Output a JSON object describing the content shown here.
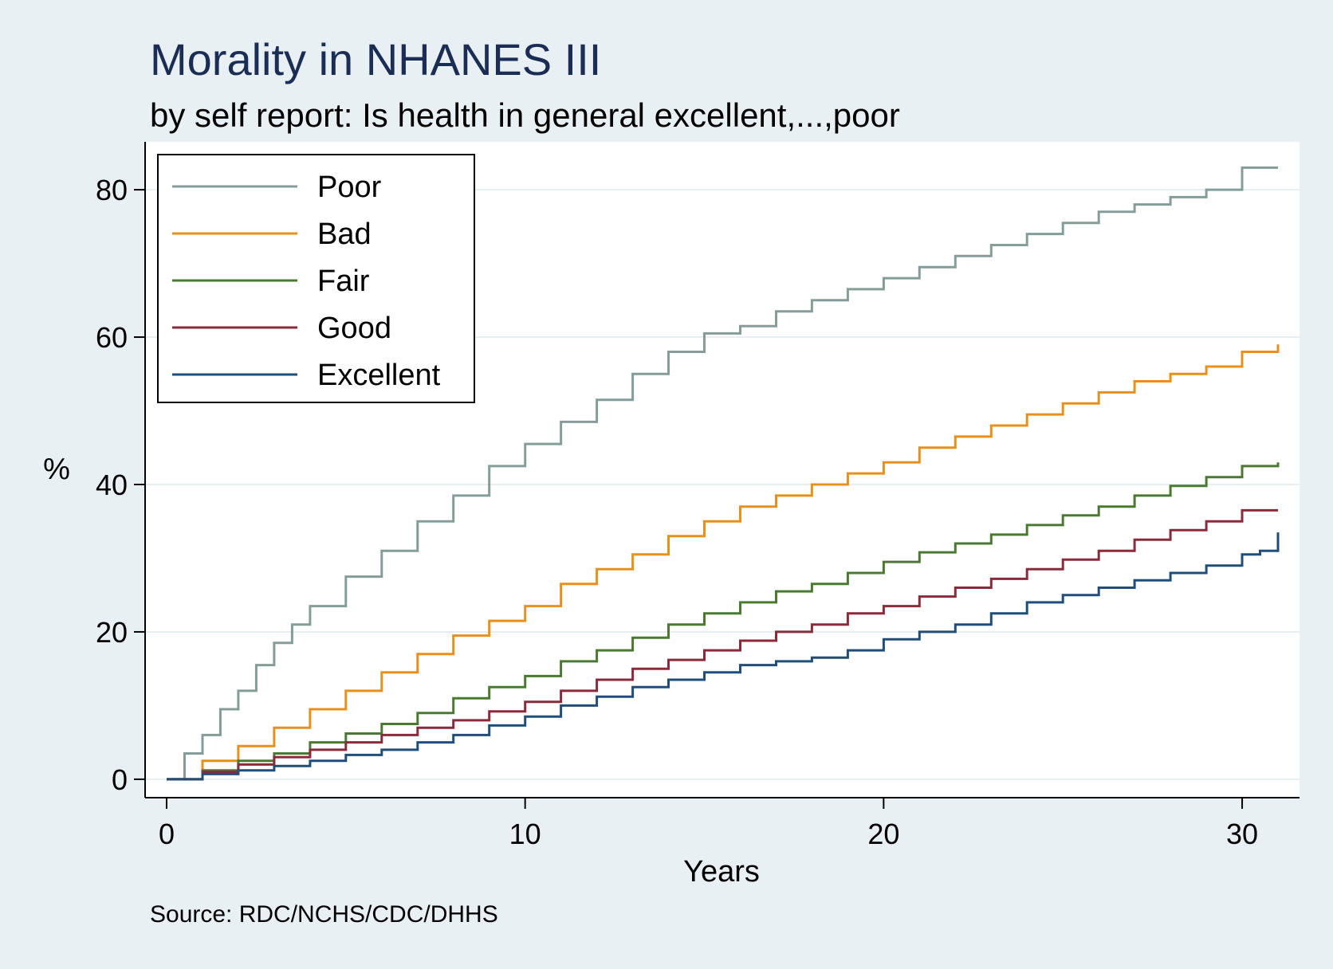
{
  "chart_data": {
    "type": "line",
    "title": "Morality in NHANES III",
    "subtitle": "by self report: Is health in general excellent,...,poor",
    "xlabel": "Years",
    "ylabel": "%",
    "note": "Source: RDC/NCHS/CDC/DHHS",
    "xlim": [
      -0.6,
      31.6
    ],
    "ylim": [
      -2.5,
      86.5
    ],
    "xticks": [
      0,
      10,
      20,
      30
    ],
    "yticks": [
      0,
      20,
      40,
      60,
      80
    ],
    "grid": "horizontal",
    "legend_position": "top-left",
    "series": [
      {
        "name": "Poor",
        "color": "#849d99",
        "x": [
          0,
          0.5,
          1,
          1.5,
          2,
          2.5,
          3,
          3.5,
          4,
          5,
          6,
          7,
          8,
          9,
          10,
          11,
          12,
          13,
          14,
          15,
          16,
          17,
          18,
          19,
          20,
          21,
          22,
          23,
          24,
          25,
          26,
          27,
          28,
          29,
          30,
          31
        ],
        "y": [
          0,
          3.5,
          6,
          9.5,
          12,
          15.5,
          18.5,
          21,
          23.5,
          27.5,
          31,
          35,
          38.5,
          42.5,
          45.5,
          48.5,
          51.5,
          55,
          58,
          60.5,
          61.5,
          63.5,
          65,
          66.5,
          68,
          69.5,
          71,
          72.5,
          74,
          75.5,
          77,
          78,
          79,
          80,
          83,
          83
        ]
      },
      {
        "name": "Bad",
        "color": "#e8901c",
        "x": [
          0,
          1,
          2,
          3,
          4,
          5,
          6,
          7,
          8,
          9,
          10,
          11,
          12,
          13,
          14,
          15,
          16,
          17,
          18,
          19,
          20,
          21,
          22,
          23,
          24,
          25,
          26,
          27,
          28,
          29,
          30,
          31
        ],
        "y": [
          0,
          2.5,
          4.5,
          7,
          9.5,
          12,
          14.5,
          17,
          19.5,
          21.5,
          23.5,
          26.5,
          28.5,
          30.5,
          33,
          35,
          37,
          38.5,
          40,
          41.5,
          43,
          45,
          46.5,
          48,
          49.5,
          51,
          52.5,
          54,
          55,
          56,
          58,
          59
        ]
      },
      {
        "name": "Fair",
        "color": "#4a7a32",
        "x": [
          0,
          1,
          2,
          3,
          4,
          5,
          6,
          7,
          8,
          9,
          10,
          11,
          12,
          13,
          14,
          15,
          16,
          17,
          18,
          19,
          20,
          21,
          22,
          23,
          24,
          25,
          26,
          27,
          28,
          29,
          30,
          31
        ],
        "y": [
          0,
          1.2,
          2.5,
          3.5,
          5,
          6.2,
          7.5,
          9,
          11,
          12.5,
          14,
          16,
          17.5,
          19.2,
          21,
          22.5,
          24,
          25.5,
          26.5,
          28,
          29.5,
          30.8,
          32,
          33.2,
          34.5,
          35.8,
          37,
          38.5,
          39.8,
          41,
          42.5,
          43
        ]
      },
      {
        "name": "Good",
        "color": "#8a2a3a",
        "x": [
          0,
          1,
          2,
          3,
          4,
          5,
          6,
          7,
          8,
          9,
          10,
          11,
          12,
          13,
          14,
          15,
          16,
          17,
          18,
          19,
          20,
          21,
          22,
          23,
          24,
          25,
          26,
          27,
          28,
          29,
          30,
          31
        ],
        "y": [
          0,
          1,
          2,
          3,
          4,
          5,
          6,
          7,
          8,
          9.2,
          10.5,
          12,
          13.5,
          15,
          16.2,
          17.5,
          18.8,
          20,
          21,
          22.5,
          23.5,
          24.8,
          26,
          27.2,
          28.5,
          29.8,
          31,
          32.5,
          33.8,
          35,
          36.5,
          36.5
        ]
      },
      {
        "name": "Excellent",
        "color": "#1f4e7a",
        "x": [
          0,
          1,
          2,
          3,
          4,
          5,
          6,
          7,
          8,
          9,
          10,
          11,
          12,
          13,
          14,
          15,
          16,
          17,
          18,
          19,
          20,
          21,
          22,
          23,
          24,
          25,
          26,
          27,
          28,
          29,
          30,
          30.5,
          31
        ],
        "y": [
          0,
          0.7,
          1.2,
          1.8,
          2.5,
          3.3,
          4,
          5,
          6,
          7.3,
          8.5,
          10,
          11.2,
          12.5,
          13.5,
          14.5,
          15.5,
          16,
          16.5,
          17.5,
          19,
          20,
          21,
          22.5,
          24,
          25,
          26,
          27,
          28,
          29,
          30.5,
          31,
          33.5
        ]
      }
    ]
  }
}
